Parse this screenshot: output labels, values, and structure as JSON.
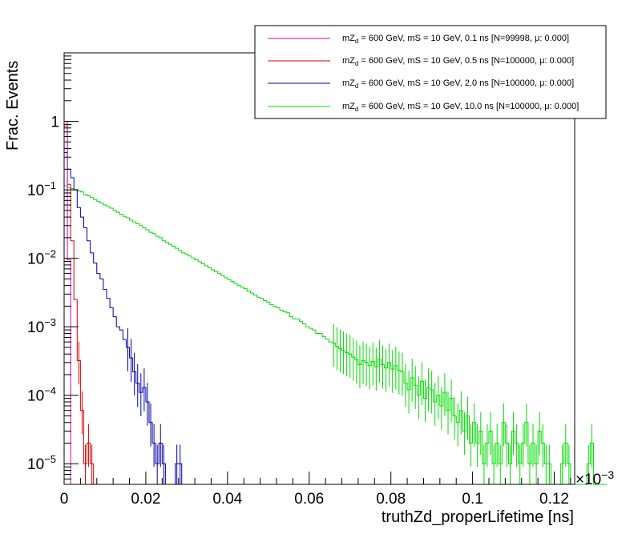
{
  "chart_data": {
    "type": "line",
    "histogram": true,
    "ylabel": "Frac. Events",
    "xlabel": "truthZd_properLifetime [ns]",
    "x_scale_label": "×10",
    "x_scale_exponent": "−3",
    "xlim": [
      0,
      0.125
    ],
    "ylim": [
      5e-06,
      10
    ],
    "yscale": "log",
    "bin_width": 0.0008,
    "x_ticks": [
      {
        "value": 0,
        "label": "0"
      },
      {
        "value": 0.02,
        "label": "0.02"
      },
      {
        "value": 0.04,
        "label": "0.04"
      },
      {
        "value": 0.06,
        "label": "0.06"
      },
      {
        "value": 0.08,
        "label": "0.08"
      },
      {
        "value": 0.1,
        "label": "0.1"
      },
      {
        "value": 0.12,
        "label": "0.12"
      }
    ],
    "y_ticks": [
      {
        "value": 1,
        "base": "1",
        "exp": ""
      },
      {
        "value": 0.1,
        "base": "10",
        "exp": "−1"
      },
      {
        "value": 0.01,
        "base": "10",
        "exp": "−2"
      },
      {
        "value": 0.001,
        "base": "10",
        "exp": "−3"
      },
      {
        "value": 0.0001,
        "base": "10",
        "exp": "−4"
      },
      {
        "value": 1e-05,
        "base": "10",
        "exp": "−5"
      }
    ],
    "legend_position": "top-right",
    "series": [
      {
        "name": "mZ_d = 600 GeV, mS = 10 GeV, 0.1 ns [N=99998,      μ: 0.000]",
        "legend_main": "mZ",
        "legend_sub": "d",
        "legend_rest": " = 600 GeV, mS = 10 GeV, 0.1 ns [N=99998,      μ: 0.000]",
        "color": "#cc00cc",
        "x": [
          0.0,
          0.0008,
          0.0016
        ],
        "y": [
          0.99,
          0.0095,
          0.0
        ]
      },
      {
        "name": "mZ_d = 600 GeV, mS = 10 GeV, 0.5 ns [N=100000,      μ: 0.000]",
        "legend_main": "mZ",
        "legend_sub": "d",
        "legend_rest": " = 600 GeV, mS = 10 GeV, 0.5 ns [N=100000,      μ: 0.000]",
        "color": "#dd0000",
        "x": [
          0.0,
          0.0008,
          0.0016,
          0.0024,
          0.0032,
          0.004,
          0.0048,
          0.0056,
          0.0064,
          0.0072
        ],
        "y": [
          0.85,
          0.12,
          0.018,
          0.0025,
          0.00032,
          6e-05,
          1e-05,
          2e-05,
          1e-05,
          0.0
        ]
      },
      {
        "name": "mZ_d = 600 GeV, mS = 10 GeV, 2.0 ns [N=100000,      μ: 0.000]",
        "legend_main": "mZ",
        "legend_sub": "d",
        "legend_rest": " = 600 GeV, mS = 10 GeV, 2.0 ns [N=100000,      μ: 0.000]",
        "color": "#0000aa",
        "x": [
          0.0,
          0.0008,
          0.0016,
          0.0024,
          0.0032,
          0.004,
          0.0048,
          0.0056,
          0.0064,
          0.0072,
          0.008,
          0.0088,
          0.0096,
          0.0104,
          0.0112,
          0.012,
          0.0128,
          0.0136,
          0.0144,
          0.0152,
          0.016,
          0.0168,
          0.0176,
          0.0184,
          0.0192,
          0.02,
          0.0208,
          0.0216,
          0.0224,
          0.0232,
          0.024,
          0.0248,
          0.0256,
          0.0264,
          0.0272,
          0.028,
          0.0288
        ],
        "y": [
          0.35,
          0.2,
          0.15,
          0.1,
          0.055,
          0.04,
          0.028,
          0.018,
          0.012,
          0.0085,
          0.006,
          0.005,
          0.0035,
          0.0026,
          0.0019,
          0.0014,
          0.001,
          0.0009,
          0.00065,
          0.0005,
          0.00035,
          0.00022,
          0.00015,
          0.00011,
          0.00013,
          8e-05,
          4e-05,
          2e-05,
          1e-05,
          2e-05,
          1e-05,
          0.0,
          0.0,
          0.0,
          1e-05,
          1e-05,
          0.0
        ]
      },
      {
        "name": "mZ_d = 600 GeV, mS = 10 GeV, 10.0 ns [N=100000,      μ: 0.000]",
        "legend_main": "mZ",
        "legend_sub": "d",
        "legend_rest": " = 600 GeV, mS = 10 GeV, 10.0 ns [N=100000,      μ: 0.000]",
        "color": "#00dd00",
        "x_start": 0.0,
        "y": [
          0.115,
          0.108,
          0.104,
          0.101,
          0.096,
          0.093,
          0.085,
          0.082,
          0.077,
          0.072,
          0.068,
          0.064,
          0.06,
          0.057,
          0.054,
          0.05,
          0.047,
          0.044,
          0.041,
          0.039,
          0.036,
          0.034,
          0.032,
          0.03,
          0.028,
          0.026,
          0.024,
          0.023,
          0.021,
          0.02,
          0.018,
          0.017,
          0.016,
          0.015,
          0.014,
          0.013,
          0.012,
          0.0115,
          0.0108,
          0.0101,
          0.0095,
          0.0089,
          0.0083,
          0.0078,
          0.0073,
          0.0068,
          0.0064,
          0.006,
          0.0056,
          0.0052,
          0.0049,
          0.0046,
          0.0043,
          0.004,
          0.0038,
          0.0036,
          0.0033,
          0.0031,
          0.0029,
          0.0027,
          0.0026,
          0.0024,
          0.0023,
          0.0021,
          0.002,
          0.0019,
          0.00175,
          0.00165,
          0.0016,
          0.0014,
          0.0013,
          0.0013,
          0.0012,
          0.0011,
          0.001,
          0.00095,
          0.0009,
          0.0008,
          0.0008,
          0.00072,
          0.00066,
          0.0006,
          0.00058,
          0.00052,
          0.00048,
          0.00045,
          0.00042,
          0.0004,
          0.00036,
          0.00033,
          0.00028,
          0.00032,
          0.0003,
          0.00027,
          0.00031,
          0.00026,
          0.00034,
          0.00028,
          0.00025,
          0.0003,
          0.00024,
          0.00027,
          0.00023,
          0.00022,
          0.00015,
          0.00012,
          0.00018,
          0.00014,
          0.0001,
          0.00016,
          9e-05,
          0.00013,
          0.00012,
          8e-05,
          0.0001,
          7e-05,
          0.00011,
          6e-05,
          9e-05,
          5e-05,
          4e-05,
          6e-05,
          3e-05,
          5e-05,
          2e-05,
          4e-05,
          2e-05,
          3e-05,
          1e-05,
          2e-05,
          3e-05,
          1e-05,
          2e-05,
          1e-05,
          4e-05,
          2e-05,
          1e-05,
          3e-05,
          2e-05,
          1e-05,
          2e-05,
          4e-05,
          1e-05,
          2e-05,
          1e-05,
          3e-05,
          2e-05,
          1e-05,
          1e-05,
          0.0,
          0.0,
          0.0,
          1e-05,
          2e-05,
          1e-05,
          0.0,
          0.0,
          0.0,
          0.0,
          0.0,
          1e-05,
          2e-05,
          0.0,
          0.0,
          0.0,
          0.0
        ]
      }
    ]
  }
}
